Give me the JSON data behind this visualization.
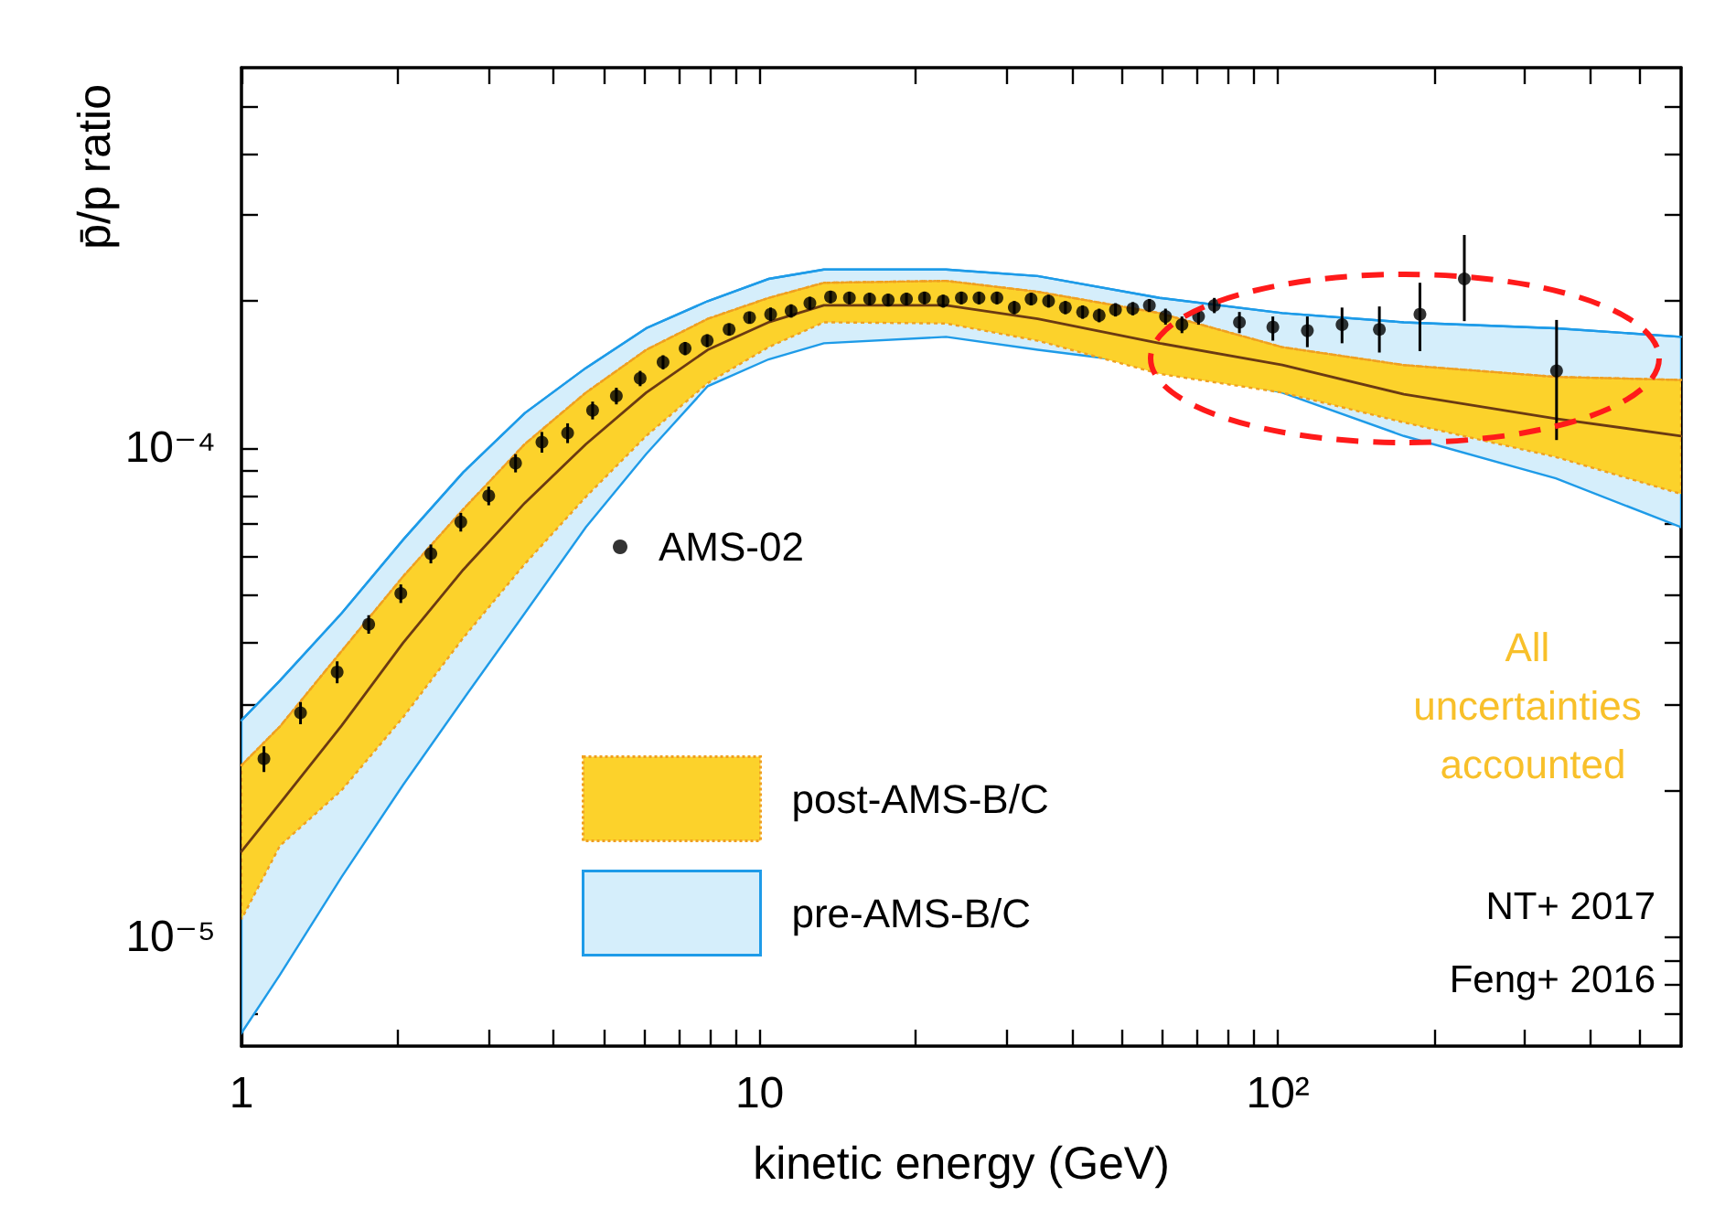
{
  "chart_data": {
    "type": "scatter",
    "xlabel": "kinetic energy (GeV)",
    "ylabel": "p̄/p ratio",
    "log": "xy",
    "xlim": [
      1,
      600
    ],
    "ylim": [
      6e-06,
      0.0006
    ],
    "xticks": [
      1,
      {
        "value": 2,
        "label": null
      },
      {
        "value": 3,
        "label": null
      },
      {
        "value": 4,
        "label": null
      },
      {
        "value": 5,
        "label": null
      },
      {
        "value": 6,
        "label": null
      },
      {
        "value": 7,
        "label": null
      },
      {
        "value": 8,
        "label": null
      },
      {
        "value": 9,
        "label": null
      },
      10,
      {
        "value": 20,
        "label": null
      },
      {
        "value": 30,
        "label": null
      },
      {
        "value": 40,
        "label": null
      },
      {
        "value": 50,
        "label": null
      },
      {
        "value": 60,
        "label": null
      },
      {
        "value": 70,
        "label": null
      },
      {
        "value": 80,
        "label": null
      },
      {
        "value": 90,
        "label": null
      },
      {
        "value": 100,
        "label": "10²"
      },
      {
        "value": 200,
        "label": null
      },
      {
        "value": 300,
        "label": null
      },
      {
        "value": 400,
        "label": null
      },
      {
        "value": 500,
        "label": null
      }
    ],
    "yticks": [
      {
        "value": 7e-06,
        "label": null
      },
      {
        "value": 8e-06,
        "label": null
      },
      {
        "value": 9e-06,
        "label": null
      },
      {
        "value": 1e-05,
        "label": "10⁻⁵"
      },
      {
        "value": 2e-05,
        "label": null
      },
      {
        "value": 3e-05,
        "label": null
      },
      {
        "value": 4e-05,
        "label": null
      },
      {
        "value": 5e-05,
        "label": null
      },
      {
        "value": 6e-05,
        "label": null
      },
      {
        "value": 7e-05,
        "label": null
      },
      {
        "value": 8e-05,
        "label": null
      },
      {
        "value": 9e-05,
        "label": null
      },
      {
        "value": 0.0001,
        "label": "10⁻⁴"
      },
      {
        "value": 0.0002,
        "label": null
      },
      {
        "value": 0.0003,
        "label": null
      },
      {
        "value": 0.0004,
        "label": null
      },
      {
        "value": 0.0005,
        "label": null
      }
    ],
    "grid": false,
    "legend": "left",
    "series": [
      {
        "type": "line",
        "name": "pre-AMS-B/C",
        "color": "#1e9be8",
        "x": [
          1,
          1.186,
          1.56,
          2.05,
          2.68,
          3.52,
          4.62,
          6.04,
          7.94,
          10.4,
          13.3,
          22.9,
          34.4,
          59.1,
          102,
          175,
          344,
          600
        ],
        "values": [
          2.78e-05,
          3.35e-05,
          4.6e-05,
          6.5e-05,
          8.94e-05,
          0.000118,
          0.000146,
          0.000176,
          0.0002,
          0.000222,
          0.000232,
          0.000232,
          0.000225,
          0.000203,
          0.000189,
          0.000181,
          0.000176,
          0.000169
        ],
        "upper": [
          2.78e-05,
          3.35e-05,
          4.6e-05,
          6.5e-05,
          8.94e-05,
          0.000118,
          0.000146,
          0.000176,
          0.0002,
          0.000222,
          0.000232,
          0.000232,
          0.000225,
          0.000203,
          0.000189,
          0.000181,
          0.000176,
          0.000169
        ],
        "lower": [
          6.38e-06,
          8.39e-06,
          1.33e-05,
          2.05e-05,
          3.07e-05,
          4.6e-05,
          6.9e-05,
          9.74e-05,
          0.000134,
          0.000152,
          0.000164,
          0.000169,
          0.000159,
          0.000148,
          0.00013,
          0.000106,
          8.68e-05,
          6.9e-05
        ]
      },
      {
        "type": "line",
        "name": "post-AMS-B/C",
        "color": "#f0a020",
        "line_style": "dotted",
        "x": [
          1,
          1.186,
          1.56,
          2.05,
          2.68,
          3.52,
          4.62,
          6.04,
          7.94,
          10.4,
          13.3,
          22.9,
          34.4,
          59.1,
          102,
          175,
          344,
          600
        ],
        "values": [
          2.25e-05,
          2.7e-05,
          3.85e-05,
          5.47e-05,
          7.51e-05,
          0.000102,
          0.00013,
          0.000159,
          0.000184,
          0.000203,
          0.000218,
          0.00022,
          0.000209,
          0.000189,
          0.000161,
          0.000148,
          0.00014,
          0.000138
        ],
        "lower": [
          1.09e-05,
          1.54e-05,
          2e-05,
          2.82e-05,
          4.1e-05,
          5.8e-05,
          7.96e-05,
          0.000106,
          0.000136,
          0.000161,
          0.000181,
          0.00018,
          0.000166,
          0.000142,
          0.00013,
          0.000113,
          9.6e-05,
          8.07e-05
        ],
        "upper": [
          2.25e-05,
          2.7e-05,
          3.85e-05,
          5.47e-05,
          7.51e-05,
          0.000102,
          0.00013,
          0.000159,
          0.000184,
          0.000203,
          0.000218,
          0.00022,
          0.000209,
          0.000189,
          0.000161,
          0.000148,
          0.00014,
          0.000138
        ]
      },
      {
        "type": "line",
        "color": "#6b3a12",
        "x": [
          1,
          1.186,
          1.56,
          2.05,
          2.68,
          3.52,
          4.62,
          6.04,
          7.94,
          10.4,
          13.3,
          22.9,
          34.4,
          59.1,
          102,
          175,
          344,
          600
        ],
        "values": [
          1.5e-05,
          1.88e-05,
          2.71e-05,
          4e-05,
          5.65e-05,
          7.73e-05,
          0.000102,
          0.00013,
          0.000159,
          0.000181,
          0.000196,
          0.000196,
          0.000184,
          0.000164,
          0.000148,
          0.000129,
          0.000115,
          0.000106
        ]
      },
      {
        "name": "AMS-02",
        "color": "#000000",
        "marker": "circle",
        "x": [
          1.105,
          1.3,
          1.53,
          1.76,
          2.03,
          2.32,
          2.65,
          3.0,
          3.38,
          3.8,
          4.26,
          4.76,
          5.29,
          5.88,
          6.51,
          7.18,
          7.92,
          8.73,
          9.56,
          10.5,
          11.5,
          12.5,
          13.7,
          14.9,
          16.3,
          17.7,
          19.2,
          20.8,
          22.6,
          24.5,
          26.5,
          28.7,
          31.0,
          33.4,
          36.1,
          38.9,
          42.0,
          45.2,
          48.6,
          52.5,
          56.5,
          60.7,
          65.3,
          70.3,
          75.4,
          84.3,
          97.8,
          114,
          133,
          157,
          188,
          229,
          345
        ],
        "values": [
          2.32e-05,
          2.88e-05,
          3.49e-05,
          4.37e-05,
          5.05e-05,
          6.09e-05,
          7.07e-05,
          8e-05,
          9.33e-05,
          0.000103,
          0.0001075,
          0.0001196,
          0.000128,
          0.000139,
          0.00015,
          0.00016,
          0.000166,
          0.000175,
          0.000185,
          0.000188,
          0.000191,
          0.000198,
          0.000204,
          0.000203,
          0.000202,
          0.000201,
          0.000202,
          0.000203,
          0.0002,
          0.000203,
          0.000203,
          0.000203,
          0.000194,
          0.000202,
          0.0002,
          0.000194,
          0.00019,
          0.000187,
          0.000192,
          0.000193,
          0.000196,
          0.000186,
          0.000179,
          0.000186,
          0.000196,
          0.000181,
          0.000177,
          0.000174,
          0.000179,
          0.000175,
          0.000188,
          0.000222,
          0.000144
        ],
        "errors": [
          1.4e-06,
          1.5e-06,
          1.8e-06,
          1.9e-06,
          2.2e-06,
          2.7e-06,
          3.1e-06,
          3.5e-06,
          4e-06,
          5e-06,
          5e-06,
          5e-06,
          5e-06,
          5e-06,
          5e-06,
          5e-06,
          5e-06,
          5e-06,
          5e-06,
          6e-06,
          6e-06,
          6e-06,
          6e-06,
          6e-06,
          6e-06,
          6e-06,
          6e-06,
          6e-06,
          6e-06,
          6e-06,
          6e-06,
          6e-06,
          6e-06,
          6e-06,
          6e-06,
          6e-06,
          6e-06,
          6e-06,
          6e-06,
          6e-06,
          6e-06,
          7e-06,
          7e-06,
          7e-06,
          7e-06,
          [
            0.000172,
            0.00019
          ],
          [
            0.000166,
            0.000186
          ],
          [
            0.000161,
            0.000186
          ],
          [
            0.000164,
            0.000194
          ],
          [
            0.000157,
            0.000195
          ],
          [
            0.000158,
            0.000218
          ],
          [
            0.000182,
            0.000273
          ],
          [
            0.000104,
            0.000183
          ]
        ]
      }
    ],
    "annotations": [
      "All uncertainties accounted",
      "NT+ 2017",
      "Feng+ 2016"
    ]
  }
}
